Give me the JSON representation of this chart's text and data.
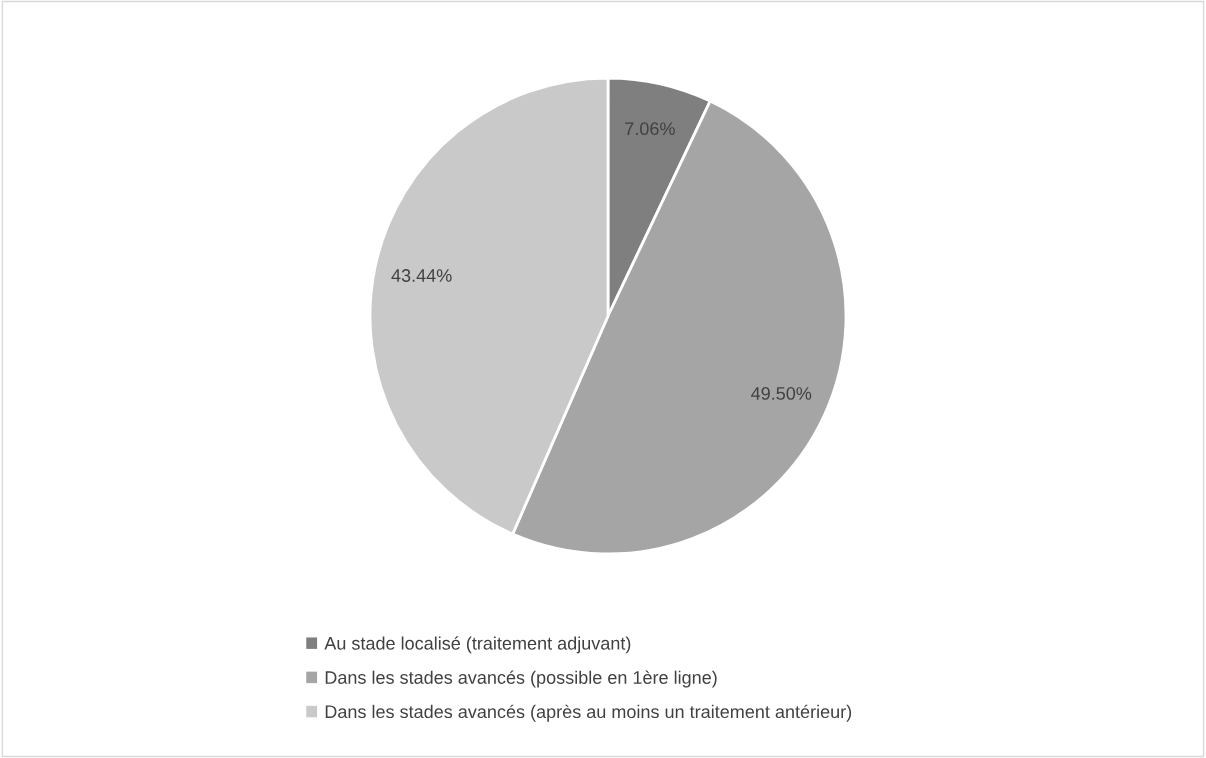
{
  "chart_data": {
    "type": "pie",
    "categories": [
      "Au stade localisé (traitement adjuvant)",
      "Dans les stades avancés (possible en 1ère ligne)",
      "Dans les stades avancés (après au moins un traitement antérieur)"
    ],
    "values": [
      7.06,
      49.5,
      43.44
    ],
    "value_labels": [
      "7.06%",
      "49.50%",
      "43.44%"
    ],
    "colors": [
      "#7f7f7f",
      "#a5a5a5",
      "#c9c9c9"
    ],
    "legend": "bottom"
  }
}
